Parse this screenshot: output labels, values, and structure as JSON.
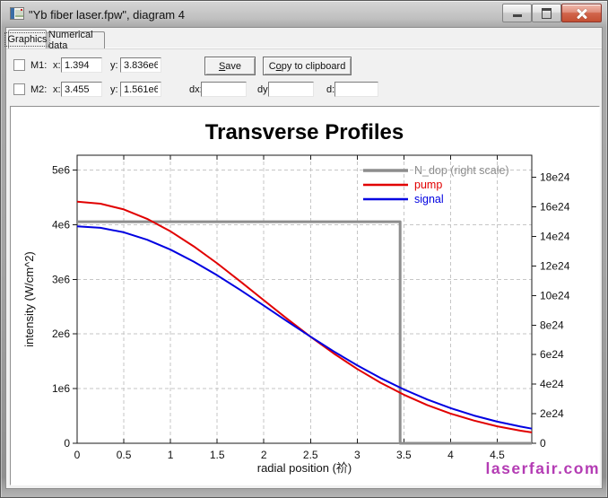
{
  "window": {
    "title": "\"Yb fiber laser.fpw\", diagram 4",
    "buttons": [
      "minimize",
      "maximize",
      "close"
    ]
  },
  "tabs": {
    "graphics": "Graphics",
    "numerical": "Numerical data"
  },
  "markers": {
    "m1": {
      "label": "M1:",
      "x_label": "x:",
      "x_value": "1.394",
      "y_label": "y:",
      "y_value": "3.836e6",
      "checked": false
    },
    "m2": {
      "label": "M2:",
      "x_label": "x:",
      "x_value": "3.455",
      "y_label": "y:",
      "y_value": "1.561e6",
      "checked": false
    }
  },
  "buttons": {
    "save": {
      "pre": "",
      "accel": "S",
      "post": "ave"
    },
    "copy": {
      "pre": "C",
      "accel": "o",
      "post": "py to clipboard"
    }
  },
  "deltas": {
    "dx_label": "dx:",
    "dx_value": "",
    "dy_label": "dy:",
    "dy_value": "",
    "d_label": "d:",
    "d_value": ""
  },
  "watermark": {
    "text": "laserfair.com",
    "color": "#b43cb4"
  },
  "chart_data": {
    "type": "line",
    "title": "Transverse Profiles",
    "xlabel": "radial position (祄)",
    "ylabel": "intensity (W/cm^2)",
    "xlim": [
      0,
      4.87
    ],
    "ylim_left": [
      0,
      5270000
    ],
    "ylim_right": [
      0,
      1.95e+25
    ],
    "grid": true,
    "legend_position": "top-right",
    "x_ticks": {
      "values": [
        0,
        0.5,
        1,
        1.5,
        2,
        2.5,
        3,
        3.5,
        4,
        4.5
      ],
      "labels": [
        "0",
        "0.5",
        "1",
        "1.5",
        "2",
        "2.5",
        "3",
        "3.5",
        "4",
        "4.5"
      ]
    },
    "y_ticks_left": {
      "values": [
        0,
        1000000,
        2000000,
        3000000,
        4000000,
        5000000
      ],
      "labels": [
        "0",
        "1e6",
        "2e6",
        "3e6",
        "4e6",
        "5e6"
      ]
    },
    "y_ticks_right": {
      "values": [
        0,
        2e+24,
        4e+24,
        6e+24,
        8e+24,
        1e+25,
        1.2e+25,
        1.4e+25,
        1.6e+25,
        1.8e+25
      ],
      "labels": [
        "0",
        "2e24",
        "4e24",
        "6e24",
        "8e24",
        "10e24",
        "12e24",
        "14e24",
        "16e24",
        "18e24"
      ]
    },
    "series": [
      {
        "name": "N_dop (right scale)",
        "axis": "right",
        "color": "#8d8d8d",
        "width": 3,
        "x": [
          0,
          3.46,
          3.46,
          4.87
        ],
        "y": [
          1.5e+25,
          1.5e+25,
          0,
          0
        ]
      },
      {
        "name": "pump",
        "axis": "left",
        "color": "#e10000",
        "width": 2,
        "x": [
          0,
          0.25,
          0.5,
          0.75,
          1,
          1.25,
          1.5,
          1.75,
          2,
          2.25,
          2.5,
          2.75,
          3,
          3.25,
          3.5,
          3.75,
          4,
          4.25,
          4.5,
          4.75,
          4.87
        ],
        "y": [
          4420000,
          4384000,
          4278000,
          4106000,
          3877000,
          3602000,
          3292000,
          2959000,
          2617000,
          2277000,
          1949000,
          1641000,
          1360000,
          1108000,
          888000,
          700000,
          544000,
          415000,
          311000,
          230000,
          198000
        ]
      },
      {
        "name": "signal",
        "axis": "left",
        "color": "#0000e1",
        "width": 2,
        "x": [
          0,
          0.25,
          0.5,
          0.75,
          1,
          1.25,
          1.5,
          1.75,
          2,
          2.25,
          2.5,
          2.75,
          3,
          3.25,
          3.5,
          3.75,
          4,
          4.25,
          4.5,
          4.75,
          4.87
        ],
        "y": [
          3970000,
          3942000,
          3859000,
          3724000,
          3543000,
          3323000,
          3073000,
          2802000,
          2518000,
          2231000,
          1950000,
          1679000,
          1426000,
          1193000,
          985000,
          801000,
          643000,
          508000,
          396000,
          305000,
          267000
        ]
      }
    ]
  }
}
